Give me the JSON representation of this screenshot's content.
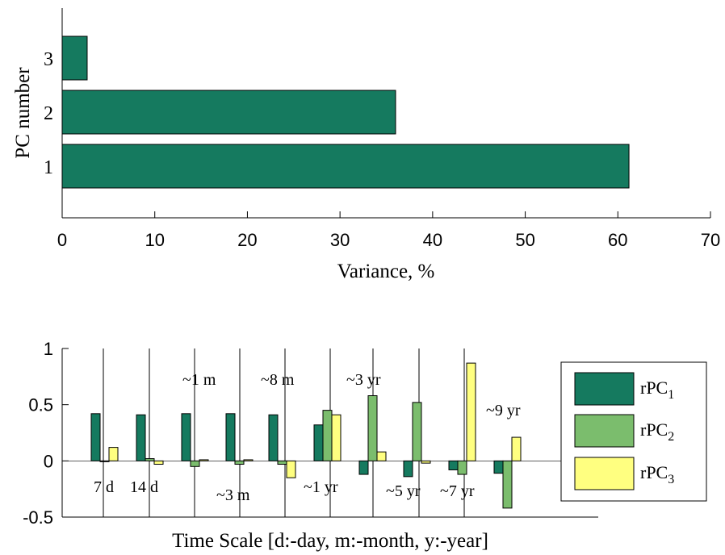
{
  "colors": {
    "bar_top": "#157a5f",
    "rPC1": "#157a5f",
    "rPC2": "#7bbd6d",
    "rPC3": "#ffff80",
    "axis": "#000000"
  },
  "chart_data": [
    {
      "type": "bar",
      "orientation": "horizontal",
      "categories": [
        "1",
        "2",
        "3"
      ],
      "values": [
        61.2,
        36.0,
        2.7
      ],
      "xlabel": "Variance, %",
      "ylabel": "PC number",
      "xlim": [
        0,
        70
      ],
      "xticks": [
        "0",
        "10",
        "20",
        "30",
        "40",
        "50",
        "60",
        "70"
      ],
      "grid": false
    },
    {
      "type": "bar",
      "xlabel": "Time Scale [d:-day, m:-month, y:-year]",
      "ylim": [
        -0.5,
        1
      ],
      "yticks": [
        "-0.5",
        "0",
        "0.5",
        "1"
      ],
      "legend": {
        "placement": "right",
        "entries": [
          {
            "main": "rPC",
            "sub": "1"
          },
          {
            "main": "rPC",
            "sub": "2"
          },
          {
            "main": "rPC",
            "sub": "3"
          }
        ]
      },
      "groups": [
        {
          "label": "7 d",
          "label_pos": "below"
        },
        {
          "label": "14 d",
          "label_pos": "below"
        },
        {
          "label": "~1 m",
          "label_pos": "above"
        },
        {
          "label": "~3 m",
          "label_pos": "below"
        },
        {
          "label": "~8 m",
          "label_pos": "above"
        },
        {
          "label": "~1 yr",
          "label_pos": "below"
        },
        {
          "label": "~3 yr",
          "label_pos": "above"
        },
        {
          "label": "~5 yr",
          "label_pos": "below"
        },
        {
          "label": "~7 yr",
          "label_pos": "below"
        },
        {
          "label": "~9 yr",
          "label_pos": "above"
        }
      ],
      "series": [
        {
          "name": "rPC1",
          "values": [
            0.42,
            0.41,
            0.42,
            0.42,
            0.41,
            0.32,
            -0.12,
            -0.14,
            -0.08,
            -0.11
          ]
        },
        {
          "name": "rPC2",
          "values": [
            0.0,
            0.02,
            -0.05,
            -0.03,
            -0.03,
            0.45,
            0.58,
            0.52,
            -0.12,
            -0.42
          ]
        },
        {
          "name": "rPC3",
          "values": [
            0.12,
            -0.03,
            0.01,
            0.01,
            -0.15,
            0.41,
            0.08,
            -0.02,
            0.87,
            0.21
          ]
        }
      ]
    }
  ]
}
